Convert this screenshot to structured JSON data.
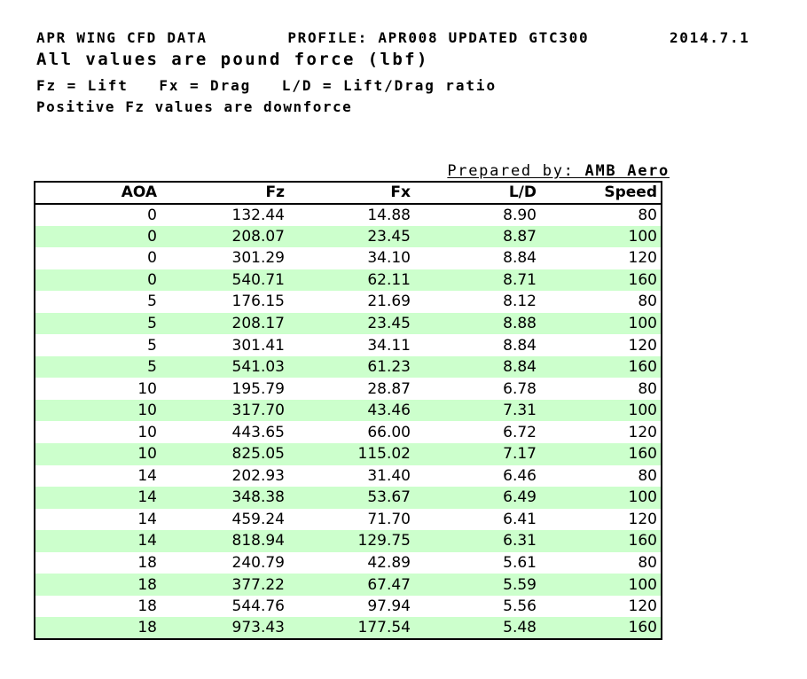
{
  "header": {
    "line1": "APR WING CFD DATA        PROFILE: APR008 UPDATED GTC300        2014.7.1",
    "line2": "All values are pound force (lbf)",
    "line3": "Fz = Lift   Fx = Drag   L/D = Lift/Drag ratio",
    "line4": "Positive Fz values are downforce"
  },
  "prepared_by": {
    "label": "Prepared by: ",
    "value": "AMB Aero"
  },
  "table": {
    "columns": [
      "AOA",
      "Fz",
      "Fx",
      "L/D",
      "Speed"
    ],
    "rows": [
      [
        "0",
        "132.44",
        "14.88",
        "8.90",
        "80"
      ],
      [
        "0",
        "208.07",
        "23.45",
        "8.87",
        "100"
      ],
      [
        "0",
        "301.29",
        "34.10",
        "8.84",
        "120"
      ],
      [
        "0",
        "540.71",
        "62.11",
        "8.71",
        "160"
      ],
      [
        "5",
        "176.15",
        "21.69",
        "8.12",
        "80"
      ],
      [
        "5",
        "208.17",
        "23.45",
        "8.88",
        "100"
      ],
      [
        "5",
        "301.41",
        "34.11",
        "8.84",
        "120"
      ],
      [
        "5",
        "541.03",
        "61.23",
        "8.84",
        "160"
      ],
      [
        "10",
        "195.79",
        "28.87",
        "6.78",
        "80"
      ],
      [
        "10",
        "317.70",
        "43.46",
        "7.31",
        "100"
      ],
      [
        "10",
        "443.65",
        "66.00",
        "6.72",
        "120"
      ],
      [
        "10",
        "825.05",
        "115.02",
        "7.17",
        "160"
      ],
      [
        "14",
        "202.93",
        "31.40",
        "6.46",
        "80"
      ],
      [
        "14",
        "348.38",
        "53.67",
        "6.49",
        "100"
      ],
      [
        "14",
        "459.24",
        "71.70",
        "6.41",
        "120"
      ],
      [
        "14",
        "818.94",
        "129.75",
        "6.31",
        "160"
      ],
      [
        "18",
        "240.79",
        "42.89",
        "5.61",
        "80"
      ],
      [
        "18",
        "377.22",
        "67.47",
        "5.59",
        "100"
      ],
      [
        "18",
        "544.76",
        "97.94",
        "5.56",
        "120"
      ],
      [
        "18",
        "973.43",
        "177.54",
        "5.48",
        "160"
      ]
    ]
  },
  "colors": {
    "row_alt": "#CCFFCC",
    "border": "#000000",
    "background": "#FFFFFF"
  }
}
